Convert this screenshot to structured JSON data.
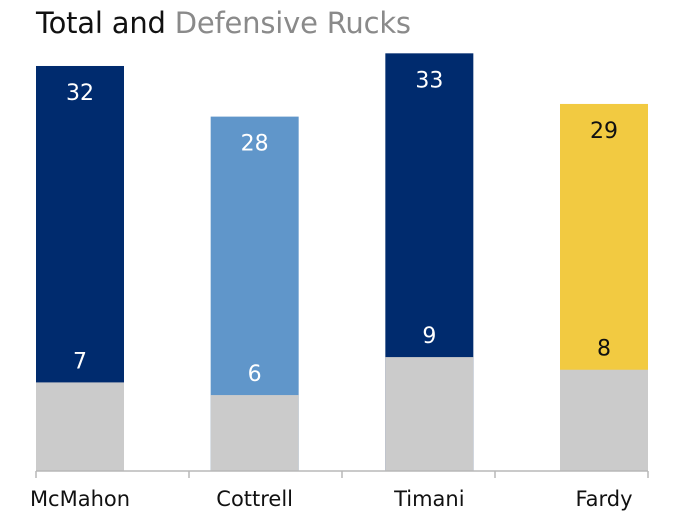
{
  "title_part1": "Total and",
  "title_part2": "Defensive Rucks",
  "chart_data": {
    "type": "bar",
    "title": "Total and Defensive Rucks",
    "xlabel": "",
    "ylabel": "",
    "categories": [
      "McMahon",
      "Cottrell",
      "Timani",
      "Fardy"
    ],
    "series": [
      {
        "name": "Total",
        "values": [
          32,
          28,
          33,
          29
        ]
      },
      {
        "name": "Defensive",
        "values": [
          7,
          6,
          9,
          8
        ]
      }
    ],
    "bar_colors": [
      "#002b6e",
      "#6096ca",
      "#002b6e",
      "#f2ca41"
    ],
    "defensive_color": "#cbcbcb",
    "total_label_colors": [
      "#ffffff",
      "#ffffff",
      "#ffffff",
      "#111111"
    ],
    "defensive_label_colors": [
      "#ffffff",
      "#ffffff",
      "#ffffff",
      "#111111"
    ],
    "ylim": [
      0,
      33.5
    ],
    "grid": false,
    "legend": "none",
    "overlap": true
  }
}
